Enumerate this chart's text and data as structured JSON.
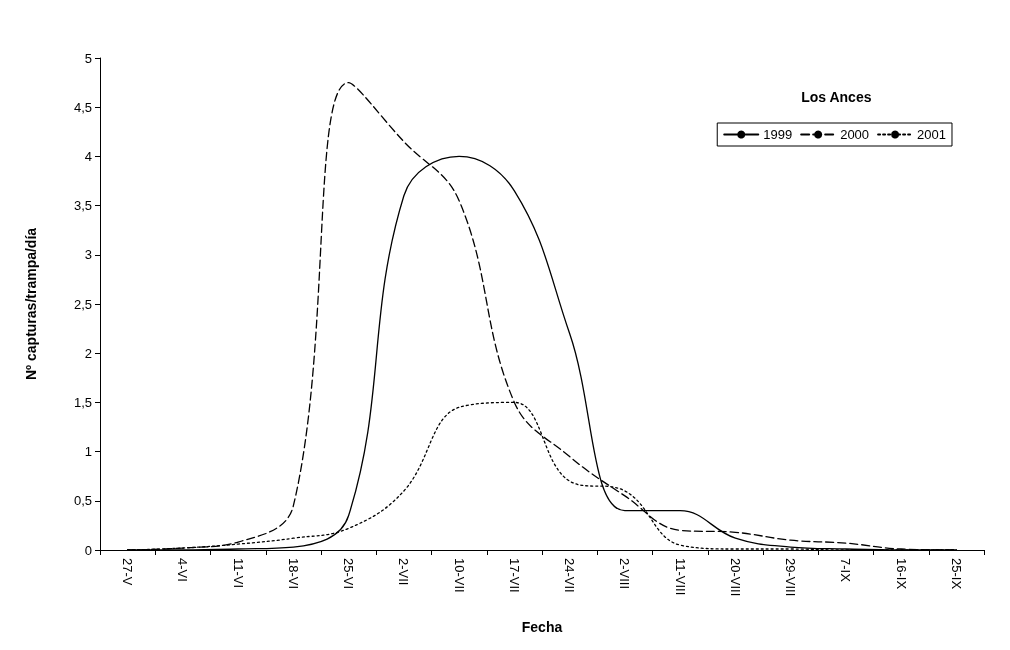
{
  "chart_data": {
    "type": "line",
    "xlabel": "Fecha",
    "ylabel": "Nº capturas/trampa/día",
    "legend_title": "Los Ances",
    "legend": "top right",
    "grid": false,
    "marker": "none",
    "categories": [
      "27-V",
      "4-VI",
      "11-VI",
      "18-VI",
      "25-VI",
      "2-VII",
      "10-VII",
      "17-VII",
      "24-VII",
      "2-VIII",
      "11-VIII",
      "20-VIII",
      "29-VIII",
      "7-IX",
      "16-IX",
      "25-IX"
    ],
    "ylim": [
      0,
      5
    ],
    "yticks": [
      0,
      {
        "value": 0.5,
        "label": "0,5"
      },
      1,
      {
        "value": 1.5,
        "label": "1,5"
      },
      2,
      {
        "value": 2.5,
        "label": "2,5"
      },
      3,
      {
        "value": 3.5,
        "label": "3,5"
      },
      4,
      {
        "value": 4.5,
        "label": "4,5"
      },
      5
    ],
    "series": [
      {
        "name": "1999",
        "color": "#000000",
        "line_style": "solid",
        "values": [
          0,
          0,
          0.01,
          0.03,
          0.35,
          3.6,
          4.0,
          3.65,
          2.2,
          0.4,
          0.4,
          0.12,
          0.03,
          0.01,
          0,
          0
        ]
      },
      {
        "name": "2000",
        "color": "#000000",
        "line_style": "dashed",
        "values": [
          0,
          0.02,
          0.08,
          0.45,
          4.75,
          4.15,
          3.55,
          1.5,
          0.95,
          0.55,
          0.2,
          0.18,
          0.1,
          0.07,
          0.01,
          0
        ]
      },
      {
        "name": "2001",
        "color": "#000000",
        "line_style": "dotted",
        "values": [
          0,
          0.02,
          0.06,
          0.12,
          0.22,
          0.6,
          1.45,
          1.5,
          0.7,
          0.6,
          0.05,
          0.01,
          0.01,
          0,
          0,
          0
        ]
      }
    ]
  }
}
